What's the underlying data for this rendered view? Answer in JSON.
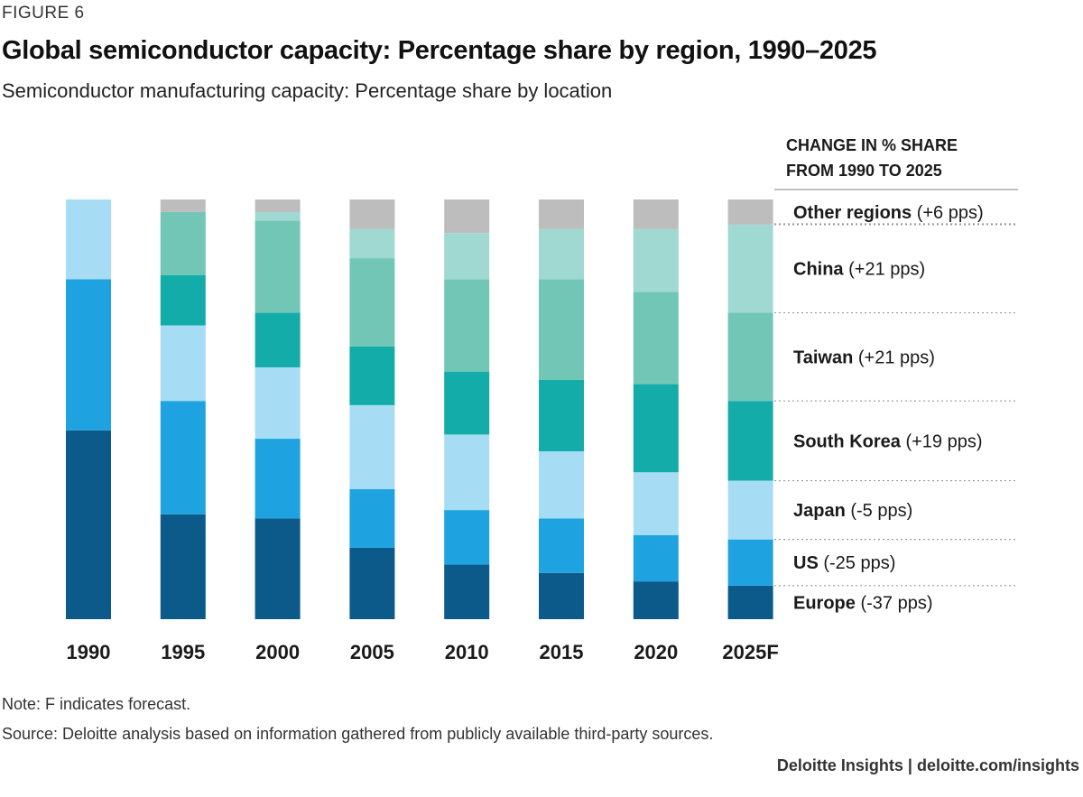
{
  "figure_label": "FIGURE 6",
  "chart_data": {
    "type": "bar",
    "stacked": true,
    "title": "Global semiconductor capacity: Percentage share by region, 1990–2025",
    "subtitle": "Semiconductor manufacturing capacity: Percentage share by location",
    "categories": [
      "1990",
      "1995",
      "2000",
      "2005",
      "2010",
      "2015",
      "2020",
      "2025F"
    ],
    "ylim": [
      0,
      100
    ],
    "legend_heading": [
      "CHANGE IN % SHARE",
      "FROM 1990 TO 2025"
    ],
    "series": [
      {
        "name": "Europe",
        "change": "(-37 pps)",
        "color": "#0b5a8a",
        "values": [
          45,
          25,
          24,
          17,
          13,
          11,
          9,
          8
        ]
      },
      {
        "name": "US",
        "change": "(-25 pps)",
        "color": "#1ea3e0",
        "values": [
          36,
          27,
          19,
          14,
          13,
          13,
          11,
          11
        ]
      },
      {
        "name": "Japan",
        "change": "(-5 pps)",
        "color": "#a7dcf5",
        "values": [
          19,
          18,
          17,
          20,
          18,
          16,
          15,
          14
        ]
      },
      {
        "name": "South Korea",
        "change": "(+19 pps)",
        "color": "#14aca8",
        "values": [
          0,
          12,
          13,
          14,
          15,
          17,
          21,
          19
        ]
      },
      {
        "name": "Taiwan",
        "change": "(+21 pps)",
        "color": "#72c6b6",
        "values": [
          0,
          15,
          22,
          21,
          22,
          24,
          22,
          21
        ]
      },
      {
        "name": "China",
        "change": "(+21 pps)",
        "color": "#a0d9d1",
        "values": [
          0,
          0,
          2,
          7,
          11,
          12,
          15,
          21
        ]
      },
      {
        "name": "Other regions",
        "change": "(+6 pps)",
        "color": "#bdbdbd",
        "values": [
          0,
          3,
          3,
          7,
          8,
          7,
          7,
          6
        ]
      }
    ]
  },
  "note": "Note: F indicates forecast.",
  "source": "Source: Deloitte analysis based on information gathered from publicly available third-party sources.",
  "brand": "Deloitte Insights | deloitte.com/insights"
}
